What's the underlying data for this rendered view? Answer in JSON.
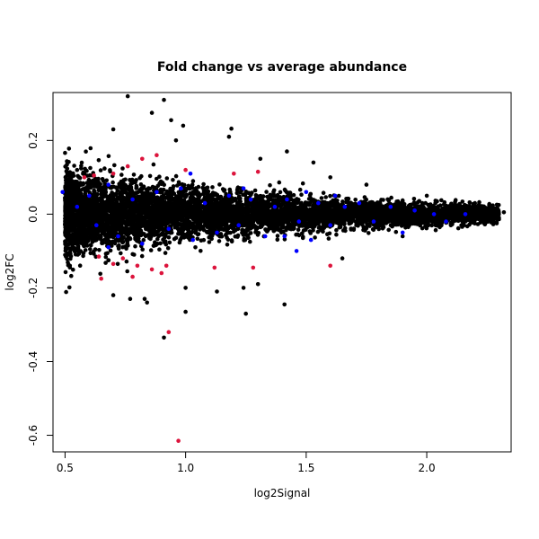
{
  "chart_data": {
    "type": "scatter",
    "title": "Fold change vs average abundance",
    "xlabel": "log2Signal",
    "ylabel": "log2FC",
    "xlim": [
      0.45,
      2.35
    ],
    "ylim": [
      -0.645,
      0.33
    ],
    "xticks": [
      0.5,
      1.0,
      1.5,
      2.0
    ],
    "xtick_labels": [
      "0.5",
      "1.0",
      "1.5",
      "2.0"
    ],
    "yticks": [
      -0.6,
      -0.4,
      -0.2,
      0.0,
      0.2
    ],
    "ytick_labels": [
      "-0.6",
      "-0.4",
      "-0.2",
      "0.0",
      "0.2"
    ],
    "grid": false,
    "legend": "none",
    "colors": {
      "black": "#000000",
      "blue": "#0000ff",
      "red": "#dc143c"
    },
    "series": [
      {
        "color": "#000000",
        "points": [
          [
            0.76,
            0.32
          ],
          [
            0.91,
            0.31
          ],
          [
            0.86,
            0.275
          ],
          [
            0.94,
            0.255
          ],
          [
            0.99,
            0.24
          ],
          [
            1.19,
            0.232
          ],
          [
            0.7,
            0.23
          ],
          [
            1.18,
            0.21
          ],
          [
            0.96,
            0.2
          ],
          [
            1.42,
            0.17
          ],
          [
            1.31,
            0.15
          ],
          [
            1.53,
            0.14
          ],
          [
            1.6,
            0.1
          ],
          [
            1.75,
            0.08
          ],
          [
            2.0,
            0.05
          ],
          [
            2.2,
            0.03
          ],
          [
            2.32,
            0.005
          ],
          [
            0.7,
            -0.22
          ],
          [
            0.77,
            -0.23
          ],
          [
            0.83,
            -0.23
          ],
          [
            1.0,
            -0.2
          ],
          [
            1.13,
            -0.21
          ],
          [
            1.24,
            -0.2
          ],
          [
            1.25,
            -0.27
          ],
          [
            0.84,
            -0.24
          ],
          [
            1.41,
            -0.245
          ],
          [
            0.91,
            -0.335
          ],
          [
            1.0,
            -0.265
          ],
          [
            1.3,
            -0.19
          ],
          [
            1.65,
            -0.12
          ],
          [
            1.9,
            -0.06
          ],
          [
            2.1,
            -0.03
          ],
          [
            0.51,
            0.0
          ],
          [
            0.52,
            -0.14
          ],
          [
            0.55,
            0.12
          ]
        ]
      },
      {
        "color": "#0000ff",
        "points": [
          [
            0.49,
            0.06
          ],
          [
            0.55,
            0.02
          ],
          [
            0.6,
            0.05
          ],
          [
            0.63,
            -0.03
          ],
          [
            0.68,
            0.08
          ],
          [
            0.72,
            -0.06
          ],
          [
            0.78,
            0.04
          ],
          [
            0.82,
            -0.08
          ],
          [
            0.88,
            0.06
          ],
          [
            0.93,
            -0.04
          ],
          [
            0.98,
            0.07
          ],
          [
            1.03,
            -0.07
          ],
          [
            1.08,
            0.03
          ],
          [
            1.13,
            -0.05
          ],
          [
            1.18,
            0.05
          ],
          [
            1.22,
            -0.03
          ],
          [
            1.27,
            0.04
          ],
          [
            1.33,
            -0.06
          ],
          [
            1.37,
            0.02
          ],
          [
            1.42,
            0.04
          ],
          [
            1.47,
            -0.02
          ],
          [
            1.5,
            0.06
          ],
          [
            1.55,
            0.03
          ],
          [
            1.6,
            -0.03
          ],
          [
            1.66,
            0.02
          ],
          [
            1.72,
            0.03
          ],
          [
            1.78,
            -0.02
          ],
          [
            1.85,
            0.02
          ],
          [
            1.9,
            -0.05
          ],
          [
            1.95,
            0.01
          ],
          [
            2.03,
            0.0
          ],
          [
            2.08,
            -0.02
          ],
          [
            2.16,
            0.0
          ],
          [
            1.41,
            -0.06
          ],
          [
            1.46,
            -0.1
          ],
          [
            1.52,
            -0.07
          ],
          [
            0.68,
            -0.09
          ],
          [
            1.02,
            0.11
          ],
          [
            1.24,
            0.07
          ],
          [
            1.62,
            0.05
          ]
        ]
      },
      {
        "color": "#dc143c",
        "points": [
          [
            0.97,
            -0.615
          ],
          [
            0.93,
            -0.32
          ],
          [
            1.28,
            -0.145
          ],
          [
            1.6,
            -0.14
          ],
          [
            1.12,
            -0.145
          ],
          [
            1.2,
            0.11
          ],
          [
            1.3,
            0.115
          ],
          [
            0.88,
            0.16
          ],
          [
            0.82,
            0.15
          ],
          [
            0.76,
            0.13
          ],
          [
            0.7,
            0.11
          ],
          [
            0.62,
            0.105
          ],
          [
            0.58,
            0.1
          ],
          [
            0.64,
            -0.115
          ],
          [
            0.7,
            -0.135
          ],
          [
            0.74,
            -0.12
          ],
          [
            0.8,
            -0.14
          ],
          [
            0.86,
            -0.15
          ],
          [
            0.92,
            -0.14
          ],
          [
            0.65,
            -0.175
          ],
          [
            0.78,
            -0.17
          ],
          [
            0.9,
            -0.16
          ],
          [
            1.0,
            0.12
          ]
        ]
      }
    ]
  }
}
